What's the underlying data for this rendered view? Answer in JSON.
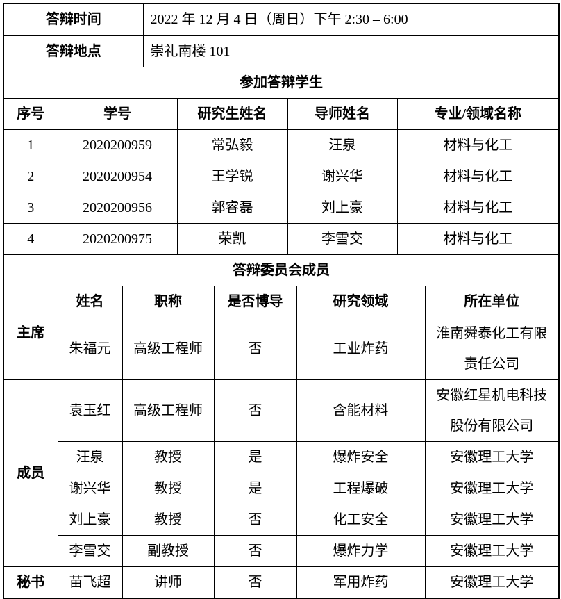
{
  "info": {
    "time_label": "答辩时间",
    "time_value": "2022 年 12 月 4 日（周日）下午 2:30 – 6:00",
    "place_label": "答辩地点",
    "place_value": "崇礼南楼 101"
  },
  "students": {
    "section_title": "参加答辩学生",
    "headers": [
      "序号",
      "学号",
      "研究生姓名",
      "导师姓名",
      "专业/领域名称"
    ],
    "rows": [
      [
        "1",
        "2020200959",
        "常弘毅",
        "汪泉",
        "材料与化工"
      ],
      [
        "2",
        "2020200954",
        "王学锐",
        "谢兴华",
        "材料与化工"
      ],
      [
        "3",
        "2020200956",
        "郭睿磊",
        "刘上豪",
        "材料与化工"
      ],
      [
        "4",
        "2020200975",
        "荣凯",
        "李雪交",
        "材料与化工"
      ]
    ]
  },
  "committee": {
    "section_title": "答辩委员会成员",
    "headers": [
      "姓名",
      "职称",
      "是否博导",
      "研究领域",
      "所在单位"
    ],
    "roles": {
      "chair": "主席",
      "members": "成员",
      "secretary": "秘书"
    },
    "rows": [
      [
        "朱福元",
        "高级工程师",
        "否",
        "工业炸药",
        "淮南舜泰化工有限责任公司"
      ],
      [
        "袁玉红",
        "高级工程师",
        "否",
        "含能材料",
        "安徽红星机电科技股份有限公司"
      ],
      [
        "汪泉",
        "教授",
        "是",
        "爆炸安全",
        "安徽理工大学"
      ],
      [
        "谢兴华",
        "教授",
        "是",
        "工程爆破",
        "安徽理工大学"
      ],
      [
        "刘上豪",
        "教授",
        "否",
        "化工安全",
        "安徽理工大学"
      ],
      [
        "李雪交",
        "副教授",
        "否",
        "爆炸力学",
        "安徽理工大学"
      ],
      [
        "苗飞超",
        "讲师",
        "否",
        "军用炸药",
        "安徽理工大学"
      ]
    ]
  }
}
